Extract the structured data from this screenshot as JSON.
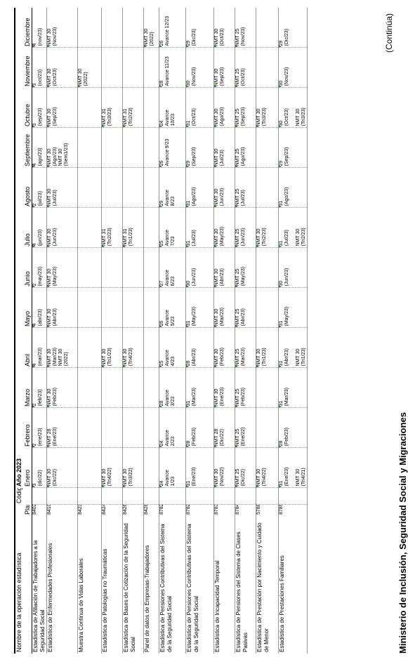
{
  "header": {
    "ministry": "Ministerio de Inclusión, Seguridad Social y Migraciones",
    "continued": "(Continúa)",
    "col_name": "Nombre de la operación estadística",
    "col_plan": "Plan",
    "col_code": "Código",
    "year": "Año 2023",
    "months": [
      "Enero",
      "Febrero",
      "Marzo",
      "Abril",
      "Mayo",
      "Junio",
      "Julio",
      "Agosto",
      "Septiembre",
      "Octubre",
      "Noviembre",
      "Diciembre"
    ]
  },
  "rows": [
    {
      "name": "Estadística de Afiliación de Trabajadores a la Seguridad Social",
      "plan": "8402",
      "code": "",
      "cells": [
        [
          "3",
          "(dic/22)"
        ],
        [
          "2",
          "(ene/23)"
        ],
        [
          "2",
          "(feb/23)"
        ],
        [
          "4",
          "(mar/23)"
        ],
        [
          "4",
          "(abr/23)"
        ],
        [
          "2",
          "(may/23)"
        ],
        [
          "4",
          "(jun/23)"
        ],
        [
          "2",
          "(jul/23)"
        ],
        [
          "4",
          "(ago/23)"
        ],
        [
          "3",
          "(sep/23)"
        ],
        [
          "3",
          "(oct/23)"
        ],
        [
          "4",
          "(nov/23)"
        ]
      ]
    },
    {
      "name": "Estadística de Enfermedades Profesionales",
      "plan": "8410",
      "code": "",
      "cells": [
        [
          "NMT 30",
          "(Dic/22)"
        ],
        [
          "NMT 28",
          "(Ene/23)"
        ],
        [
          "NMT 30",
          "(Feb/23)"
        ],
        [
          "NMT 30",
          "(Mar/23)",
          "NMT 30",
          "(2022)"
        ],
        [
          "NMT 30",
          "(Abr/23)"
        ],
        [
          "NMT 30",
          "(May/23)"
        ],
        [
          "NMT 30",
          "(Jun/23)"
        ],
        [
          "NMT 30",
          "(Jul/23)"
        ],
        [
          "NMT 30",
          "(Ago/23)",
          "NMT 30",
          "(Sem1/23)"
        ],
        [
          "NMT 30",
          "(Sep/23)"
        ],
        [
          "NMT 30",
          "(Oct/23)"
        ],
        [
          "NMT 30",
          "(Nov/23)"
        ]
      ]
    },
    {
      "name": "Muestra Continua de Vidas Laborales",
      "plan": "8423",
      "code": "",
      "cells": [
        [],
        [],
        [],
        [],
        [],
        [],
        [],
        [],
        [],
        [],
        [
          "NMT 30",
          "(2022)"
        ],
        []
      ]
    },
    {
      "name": "Estadística de Patologías no Traumáticas",
      "plan": "8424",
      "code": "",
      "cells": [
        [
          "NMT 30",
          "(Tri4/22)"
        ],
        [],
        [],
        [
          "NMT 30",
          "(Tri1/23)"
        ],
        [],
        [],
        [
          "NMT 31",
          "(Tri2/23)"
        ],
        [],
        [],
        [
          "NMT 31",
          "(Tri3/23)"
        ],
        [],
        []
      ]
    },
    {
      "name": "Estadística de Bases de Cotización de la Seguridad Social",
      "plan": "8426",
      "code": "",
      "cells": [
        [
          "NMT 30",
          "(Tri3/22)"
        ],
        [],
        [],
        [
          "NMT 30",
          "(Tri4/23)"
        ],
        [],
        [],
        [
          "NMT 31",
          "(Tri1/23)"
        ],
        [],
        [],
        [
          "NMT 31",
          "(Tri2/23)"
        ],
        [],
        []
      ]
    },
    {
      "name": "Panel de datos de Empresas-Trabajadores",
      "plan": "8428",
      "code": "",
      "cells": [
        [],
        [],
        [],
        [],
        [],
        [],
        [],
        [],
        [],
        [],
        [],
        [
          "NMT 30",
          "(2022)"
        ]
      ]
    },
    {
      "name": "Estadística de Pensiones Contributivas del Sistema de la Seguridad Social",
      "plan": "8782",
      "code": "",
      "cells": [
        [
          "24",
          "Avance",
          "1/23"
        ],
        [
          "24",
          "Avance",
          "2/23"
        ],
        [
          "28",
          "Avance",
          "3/23"
        ],
        [
          "25",
          "Avance",
          "4/23"
        ],
        [
          "26",
          "Avance",
          "5/23"
        ],
        [
          "27",
          "Avance",
          "6/23"
        ],
        [
          "25",
          "Avance",
          "7/23"
        ],
        [
          "29",
          "Avance",
          "8/23"
        ],
        [
          "26",
          "Avance 9/23"
        ],
        [
          "24",
          "Avance",
          "10/23"
        ],
        [
          "28",
          "Avance 11/23"
        ],
        [
          "26",
          "Avance 12/23"
        ]
      ]
    },
    {
      "name": "Estadística de Pensiones Contributivas del Sistema de la Seguridad Social",
      "plan": "8782",
      "code": "",
      "cells": [
        [
          "31",
          "(Ene/23)"
        ],
        [
          "28",
          "(Feb/23)"
        ],
        [
          "31",
          "(Mar/23)"
        ],
        [
          "28",
          "(Abr/23)"
        ],
        [
          "31",
          "(May/23)"
        ],
        [
          "30",
          "(Jun/23)"
        ],
        [
          "31",
          "(Jul/23)"
        ],
        [
          "31",
          "(Ago/23)"
        ],
        [
          "29",
          "(Sep/23)"
        ],
        [
          "31",
          "(Oct/23)"
        ],
        [
          "30",
          "(Nov/23)"
        ],
        [
          "29",
          "(Dic/23)"
        ]
      ]
    },
    {
      "name": "Estadística de Incapacidad Temporal",
      "plan": "8783",
      "code": "",
      "cells": [
        [
          "NMT 30",
          "(Nov/22)"
        ],
        [
          "NMT 28",
          "(Dic/22)"
        ],
        [
          "NMT 30",
          "(Ene/23)"
        ],
        [
          "NMT 30",
          "(Feb/23)"
        ],
        [
          "NMT 30",
          "(Mar/23)"
        ],
        [
          "NMT 30",
          "(Abr/23)"
        ],
        [
          "NMT 30",
          "(May/23)"
        ],
        [
          "NMT 30",
          "(Jun/23)"
        ],
        [
          "NMT 30",
          "(Jul/23)"
        ],
        [
          "NMT 30",
          "(Ago/23)"
        ],
        [
          "NMT 30",
          "(Sep/23)"
        ],
        [
          "NMT 30",
          "(Oct/23)"
        ]
      ]
    },
    {
      "name": "Estadística de Pensiones del Sistema de Clases Pasivas",
      "plan": "8784",
      "code": "",
      "cells": [
        [
          "NMT 25",
          "(Dic/22)"
        ],
        [
          "NMT 25",
          "(Ene/22)"
        ],
        [
          "NMT 25",
          "(Feb/23)"
        ],
        [
          "NMT 25",
          "(Mar/23)"
        ],
        [
          "NMT 25",
          "(Abr/23)"
        ],
        [
          "NMT 25",
          "(May/23)"
        ],
        [
          "NMT 25",
          "(Jun/23)"
        ],
        [
          "NMT 25",
          "(Jul/23)"
        ],
        [
          "NMT 25",
          "(Ago/23)"
        ],
        [
          "NMT 25",
          "(Sep/23)"
        ],
        [
          "NMT 25",
          "(Oct/23)"
        ],
        [
          "NMT 25",
          "(Nov/23)"
        ]
      ]
    },
    {
      "name": "Estadística de Prestación por Nacimiento y Cuidado de Menor",
      "plan": "5788",
      "code": "",
      "cells": [
        [
          "NMT 30",
          "(Tri4/22)"
        ],
        [],
        [],
        [
          "NMT 30",
          "(Tri1/23)"
        ],
        [],
        [],
        [
          "NMT 30",
          "(Tri2/23)"
        ],
        [],
        [],
        [
          "NMT 30",
          "(Tri3/23)"
        ],
        [],
        []
      ]
    },
    {
      "name": "Estadística de Prestaciones Familiares",
      "plan": "8789",
      "code": "",
      "cells": [
        [
          "31",
          "(Ene/23)",
          "",
          "NMT 30",
          "(Tri4/21)"
        ],
        [
          "28",
          "(Feb/23)"
        ],
        [
          "31",
          "(Mar/23)"
        ],
        [
          "31",
          "(Abr/23)",
          "",
          "NMT 30",
          "(Tri1/23)"
        ],
        [
          "31",
          "(May/23)"
        ],
        [
          "30",
          "(Jun/23)"
        ],
        [
          "31",
          "(Jul/23)",
          "",
          "NMT 30",
          "(Tri2/23)"
        ],
        [
          "31",
          "(Ago/23)"
        ],
        [
          "29",
          "(Sep/23)"
        ],
        [
          "30",
          "(Oct/23)",
          "",
          "NMT 30",
          "(Tri3/23)"
        ],
        [
          "30",
          "(Nov/23)"
        ],
        [
          "29",
          "(Dic/23)"
        ]
      ]
    }
  ]
}
